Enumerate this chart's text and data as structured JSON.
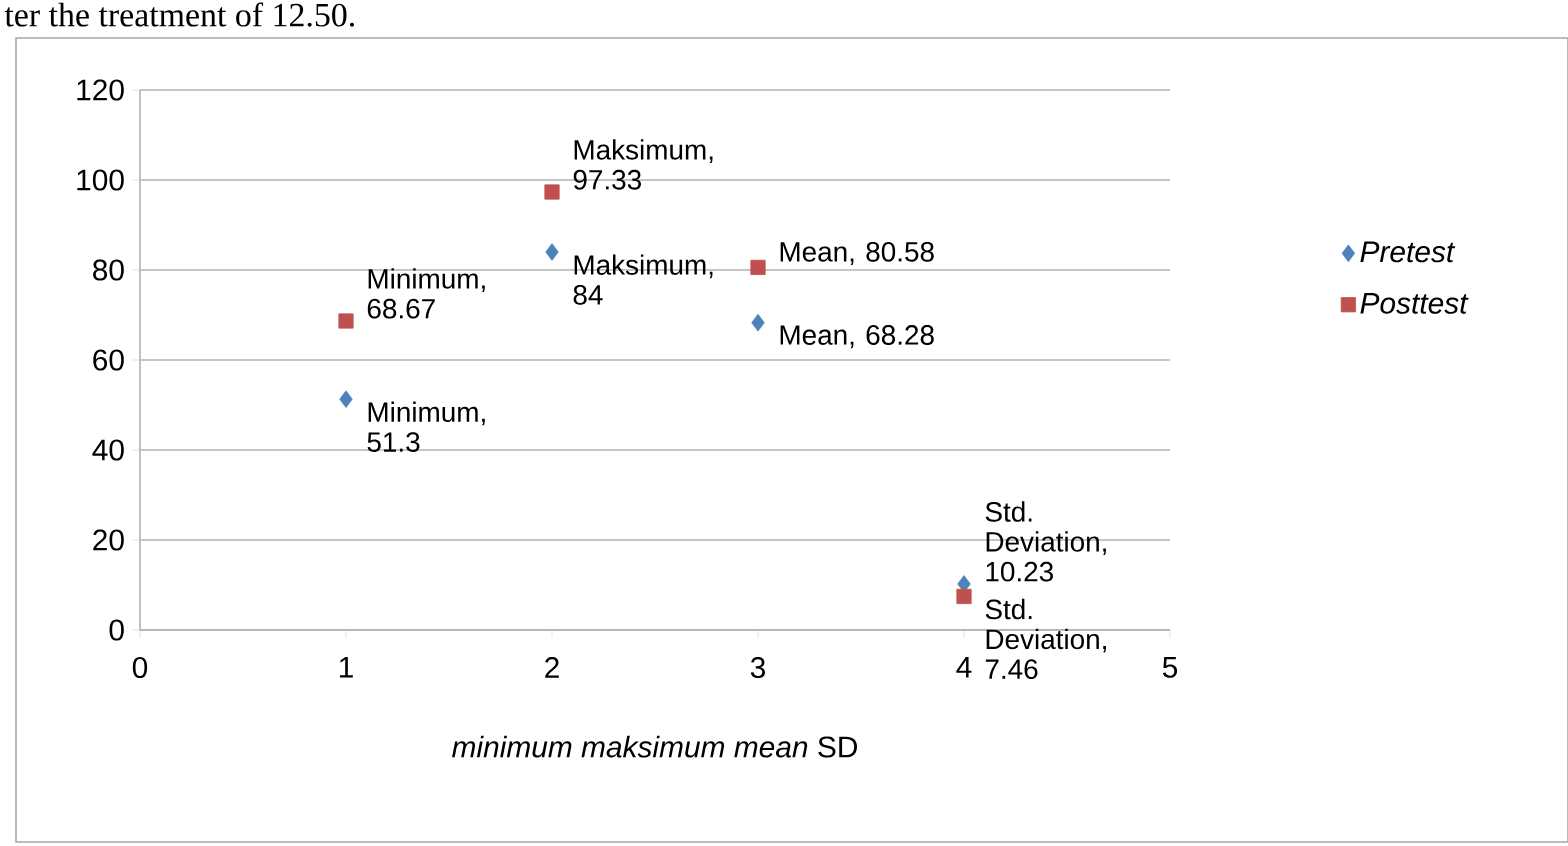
{
  "chart_data": {
    "type": "scatter",
    "annotations": [
      "ter the treatment of 12.50."
    ],
    "xlabel": "*minimum* *maksimum* *mean* SD",
    "x": [
      1,
      2,
      3,
      4
    ],
    "series": [
      {
        "name": "Pretest",
        "color": "#4f81bd",
        "marker": "diamond",
        "values": [
          51.3,
          84,
          68.28,
          10.23
        ],
        "value_labels": [
          "Minimum, 51.3",
          "Maksimum, 84",
          "Mean, 68.28",
          "Std. Deviation, 10.23"
        ]
      },
      {
        "name": "Posttest",
        "color": "#c0504d",
        "marker": "square",
        "values": [
          68.67,
          97.33,
          80.58,
          7.46
        ],
        "value_labels": [
          "Minimum, 68.67",
          "Maksimum, 97.33",
          "Mean, 80.58",
          "Std. Deviation, 7.46"
        ]
      }
    ],
    "xlim": [
      0,
      5
    ],
    "xticks": [
      0,
      1,
      2,
      3,
      4,
      5
    ],
    "ylim": [
      0,
      120
    ],
    "yticks": [
      0,
      20,
      40,
      60,
      80,
      100,
      120
    ],
    "grid": "y",
    "legend": "right"
  }
}
